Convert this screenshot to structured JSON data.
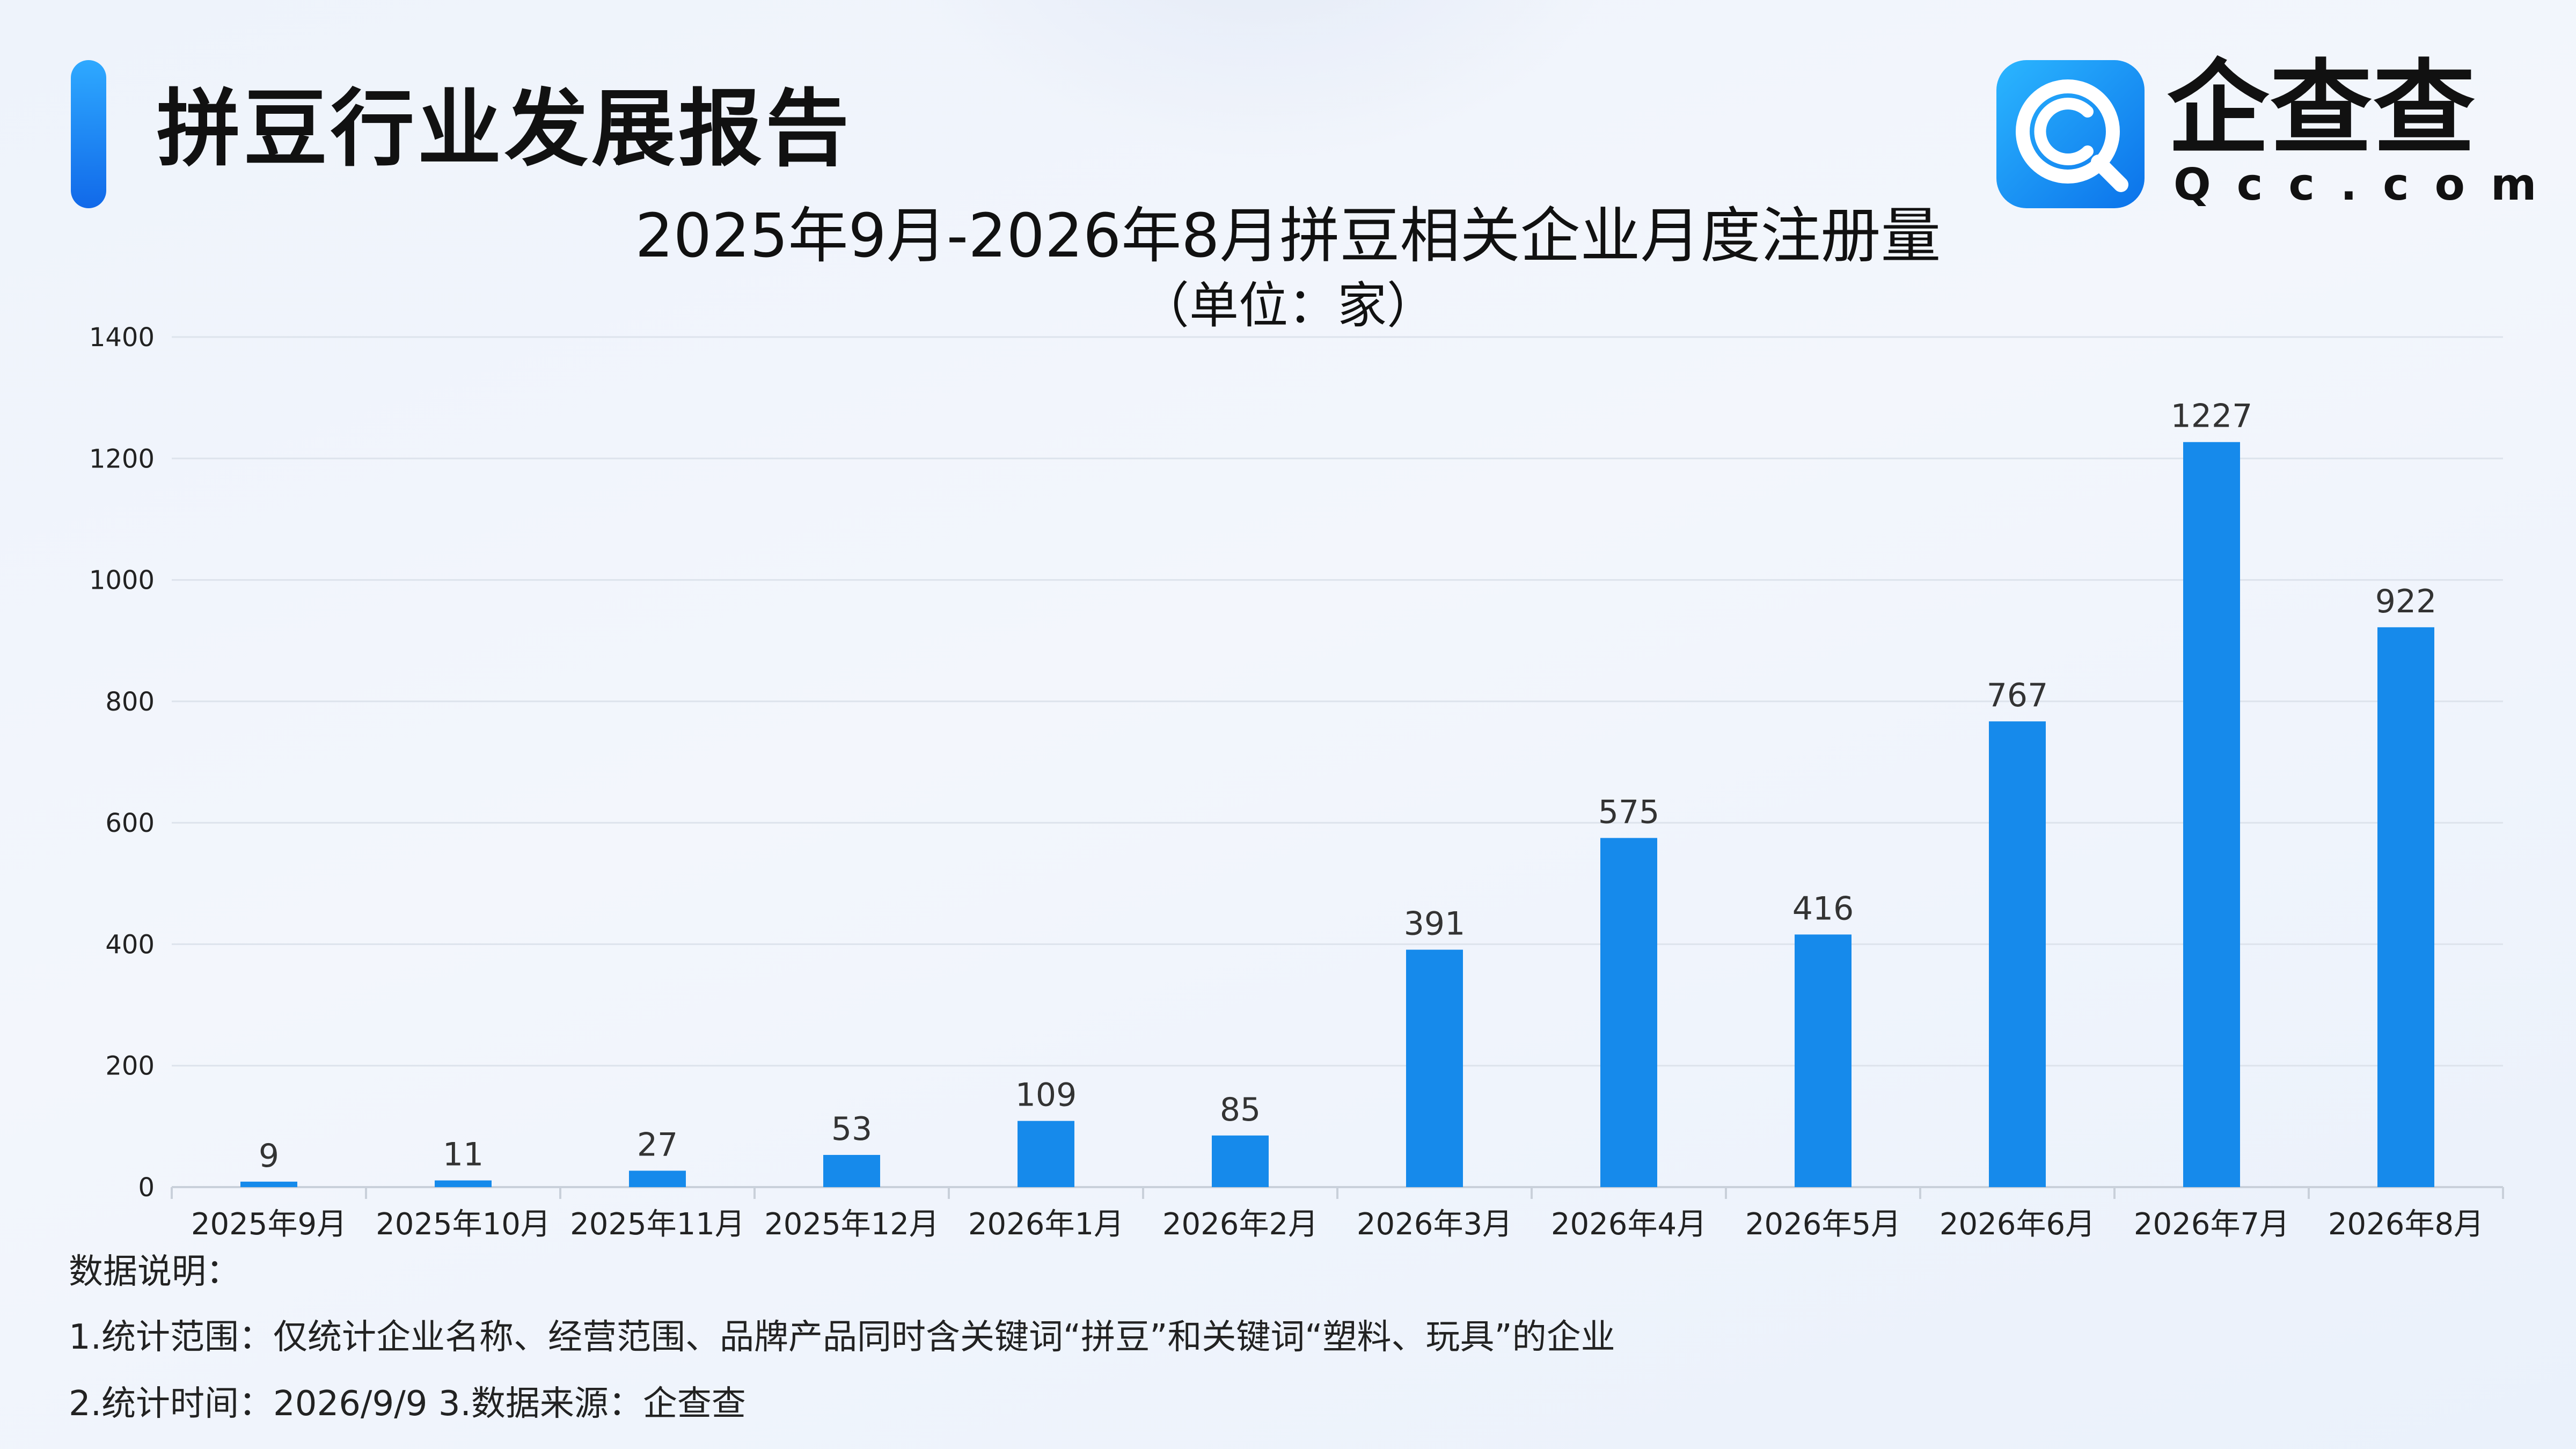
{
  "header": {
    "report_title": "拼豆行业发展报告",
    "logo_text": "企查查",
    "logo_sub": "Qcc.com",
    "logo_icon": "qcc-logo-icon"
  },
  "colors": {
    "bar": "#168aeb",
    "accent": "#1a8cf5",
    "grid": "#dde3ec",
    "axis": "#c9d0da"
  },
  "chart_data": {
    "type": "bar",
    "title": "2025年9月-2026年8月拼豆相关企业月度注册量",
    "subtitle": "（单位：家）",
    "categories": [
      "2025年9月",
      "2025年10月",
      "2025年11月",
      "2025年12月",
      "2026年1月",
      "2026年2月",
      "2026年3月",
      "2026年4月",
      "2026年5月",
      "2026年6月",
      "2026年7月",
      "2026年8月"
    ],
    "values": [
      9,
      11,
      27,
      53,
      109,
      85,
      391,
      575,
      416,
      767,
      1227,
      922
    ],
    "ylim": [
      0,
      1400
    ],
    "yticks": [
      0,
      200,
      400,
      600,
      800,
      1000,
      1200,
      1400
    ],
    "xlabel": "",
    "ylabel": "",
    "grid": true,
    "data_labels": true
  },
  "notes": {
    "heading": "数据说明：",
    "line1": "1.统计范围：仅统计企业名称、经营范围、品牌产品同时含关键词“拼豆”和关键词“塑料、玩具”的企业",
    "line2": "2.统计时间：2026/9/9  3.数据来源：企查查"
  }
}
